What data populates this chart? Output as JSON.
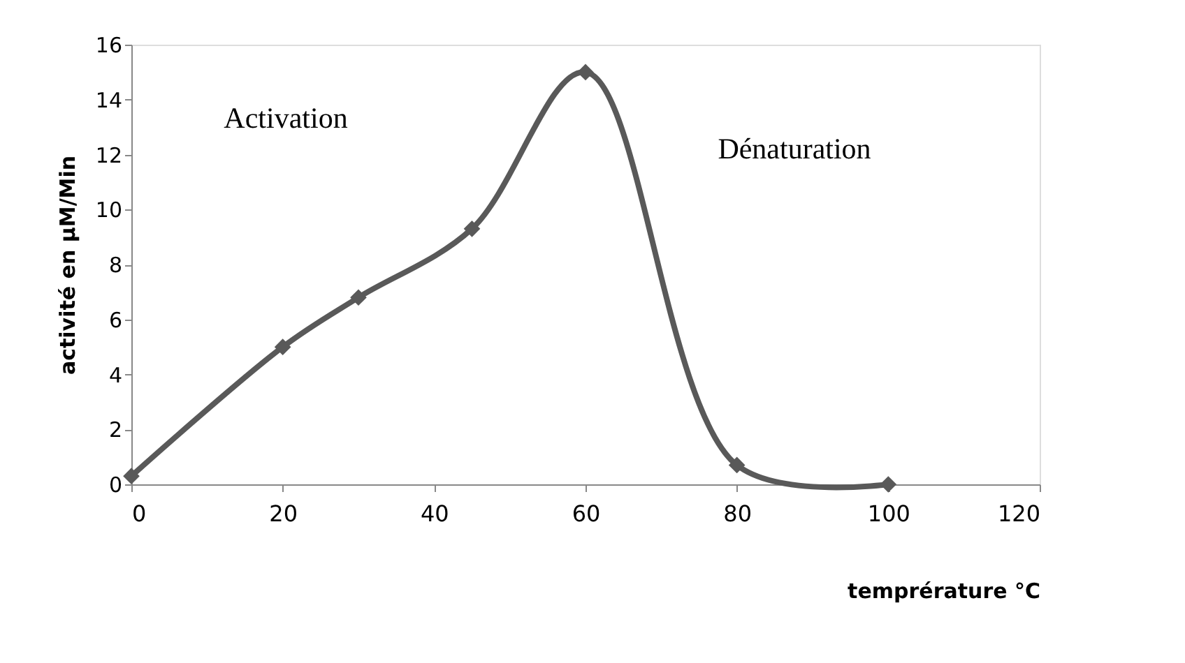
{
  "chart_data": {
    "type": "line",
    "xlabel": "temprérature °C",
    "ylabel": "activité en µM/Min",
    "x": [
      0,
      20,
      30,
      45,
      60,
      80,
      100
    ],
    "series": [
      {
        "color": "#595959",
        "values": [
          0.3,
          5,
          6.8,
          9.3,
          15,
          0.7,
          0
        ]
      }
    ],
    "xlim": [
      0,
      120
    ],
    "xticks": [
      0,
      20,
      40,
      60,
      80,
      100,
      120
    ],
    "ylim": [
      0,
      16
    ],
    "yticks": [
      0,
      2,
      4,
      6,
      8,
      10,
      12,
      14,
      16
    ],
    "marker": "diamond",
    "line_style": "solid",
    "grid": false,
    "legend": false,
    "annotations": [
      "Activation",
      "Dénaturation"
    ]
  }
}
